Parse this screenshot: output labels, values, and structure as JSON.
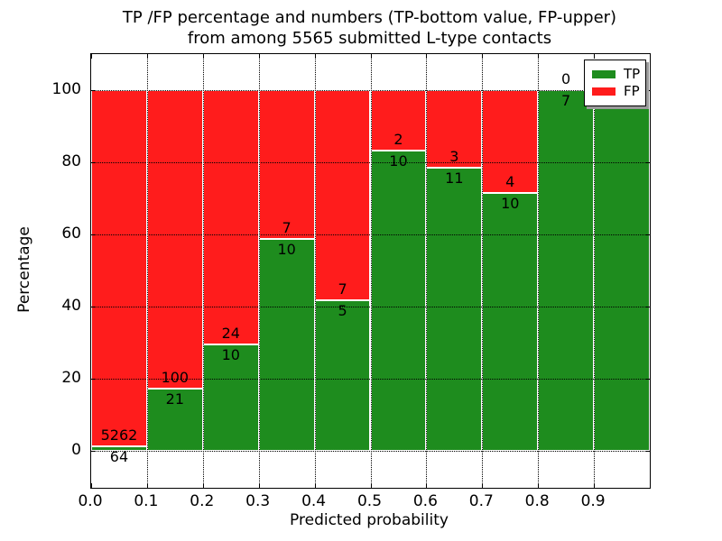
{
  "title": {
    "line1": "TP /FP percentage and numbers (TP-bottom value, FP-upper)",
    "line2": "from among 5565 submitted L-type contacts"
  },
  "axes": {
    "xlabel": "Predicted probability",
    "ylabel": "Percentage",
    "xtick_labels": [
      "0.0",
      "0.1",
      "0.2",
      "0.3",
      "0.4",
      "0.5",
      "0.6",
      "0.7",
      "0.8",
      "0.9"
    ],
    "xtick_values": [
      0.0,
      0.1,
      0.2,
      0.3,
      0.4,
      0.5,
      0.6,
      0.7,
      0.8,
      0.9
    ],
    "ytick_labels": [
      "0",
      "20",
      "40",
      "60",
      "80",
      "100"
    ],
    "ytick_values": [
      0,
      20,
      40,
      60,
      80,
      100
    ],
    "xlim": [
      0.0,
      1.0
    ],
    "ylim": [
      -10.25,
      110.25
    ],
    "grid_style": "dotted"
  },
  "legend": {
    "position": "upper right",
    "items": [
      {
        "label": "TP",
        "color": "#1e8c1e"
      },
      {
        "label": "FP",
        "color": "#ff1c1c"
      }
    ]
  },
  "chart_data": {
    "type": "bar",
    "stacked": true,
    "normalized_to_percent": true,
    "title": "TP /FP percentage and numbers (TP-bottom value, FP-upper) from among 5565 submitted L-type contacts",
    "xlabel": "Predicted probability",
    "ylabel": "Percentage",
    "total_contacts": 5565,
    "bin_edges": [
      0.0,
      0.1,
      0.2,
      0.3,
      0.4,
      0.5,
      0.6,
      0.7,
      0.8,
      0.9,
      1.0
    ],
    "categories": [
      "0.0-0.1",
      "0.1-0.2",
      "0.2-0.3",
      "0.3-0.4",
      "0.4-0.5",
      "0.5-0.6",
      "0.6-0.7",
      "0.7-0.8",
      "0.8-0.9",
      "0.9-1.0"
    ],
    "series": [
      {
        "name": "TP",
        "color": "#1e8c1e",
        "counts": [
          64,
          21,
          10,
          10,
          5,
          10,
          11,
          10,
          7,
          8
        ],
        "percent": [
          1.2,
          17.4,
          29.4,
          58.8,
          41.7,
          83.3,
          78.6,
          71.4,
          100.0,
          100.0
        ]
      },
      {
        "name": "FP",
        "color": "#ff1c1c",
        "counts": [
          5262,
          100,
          24,
          7,
          7,
          2,
          3,
          4,
          0,
          0
        ],
        "percent": [
          98.8,
          82.6,
          70.6,
          41.2,
          58.3,
          16.7,
          21.4,
          28.6,
          0.0,
          0.0
        ]
      }
    ],
    "ylim": [
      -10.25,
      110.25
    ],
    "grid": true,
    "legend_position": "upper right"
  }
}
